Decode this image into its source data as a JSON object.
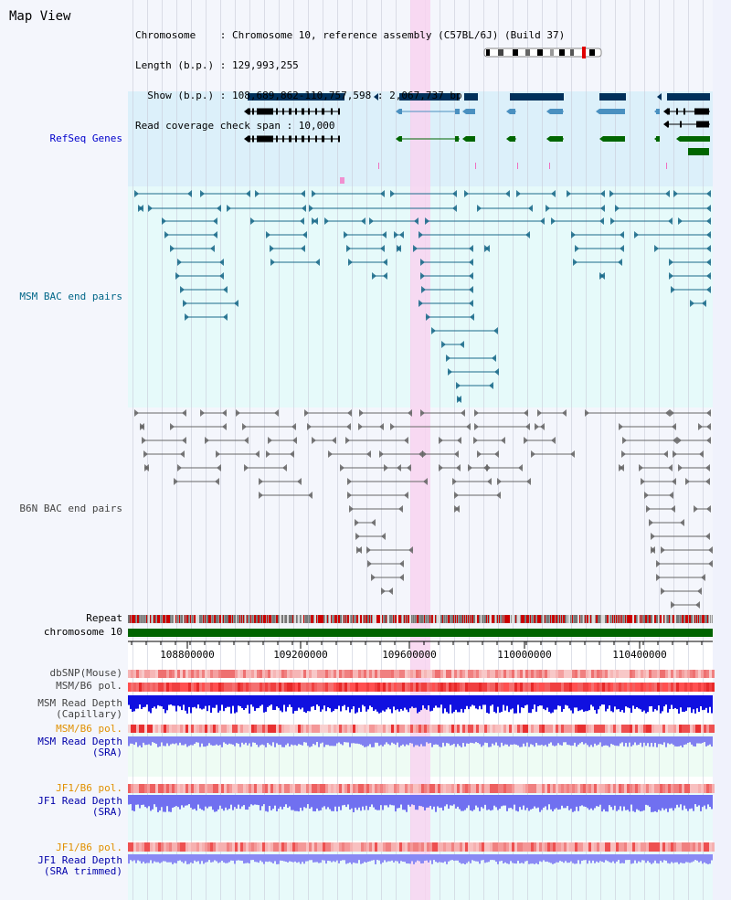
{
  "panel": {
    "title": "Map View"
  },
  "info": {
    "chromosome_line": "Chromosome    : Chromosome 10, reference assembly (C57BL/6J) (Build 37)",
    "length_line": "Length (b.p.) : 129,993,255",
    "show_line": "  Show (b.p.) : 108,689,862-110,757,598 : 2,067,737 bp",
    "coverage_line": "Read coverage check span : 10,000"
  },
  "tracks": {
    "refseq": "RefSeq Genes",
    "msm_bac": "MSM BAC end pairs",
    "b6n_bac": "B6N BAC end pairs",
    "repeat": "Repeat",
    "chromosome": "chromosome 10",
    "dbsnp": "dbSNP(Mouse)",
    "msm_b6_pol": "MSM/B6 pol.",
    "msm_depth_cap_1": "MSM Read Depth",
    "msm_depth_cap_2": "(Capillary)",
    "msm_b6_pol2": "MSM/B6 pol.",
    "msm_depth_sra_1": "MSM Read Depth",
    "msm_depth_sra_2": "(SRA)",
    "jf1_pol": "JF1/B6 pol.",
    "jf1_depth_sra_1": "JF1 Read Depth",
    "jf1_depth_sra_2": "(SRA)",
    "jf1_pol2": "JF1/B6 pol.",
    "jf1_depth_trim_1": "JF1 Read Depth",
    "jf1_depth_trim_2": "(SRA trimmed)"
  },
  "axis": {
    "ticks": [
      "108800000",
      "109200000",
      "109600000",
      "110000000",
      "110400000"
    ]
  },
  "colors": {
    "refseq_bg": "#dcf0fa",
    "msm_bg": "#e6fafa",
    "b6n_bg": "#f4f6fc",
    "highlight": "#f8d4f0",
    "gene_dark": "#00305a",
    "gene_mid": "#4a90c0",
    "gene_green": "#006600",
    "msm_line": "#1a6a8a",
    "b6n_line": "#666666",
    "repeat_red": "#cc0000",
    "chrom_green": "#006400",
    "depth_blue": "#1010e0",
    "depth_violet": "#7070f0",
    "pol_red": "#e83030"
  }
}
